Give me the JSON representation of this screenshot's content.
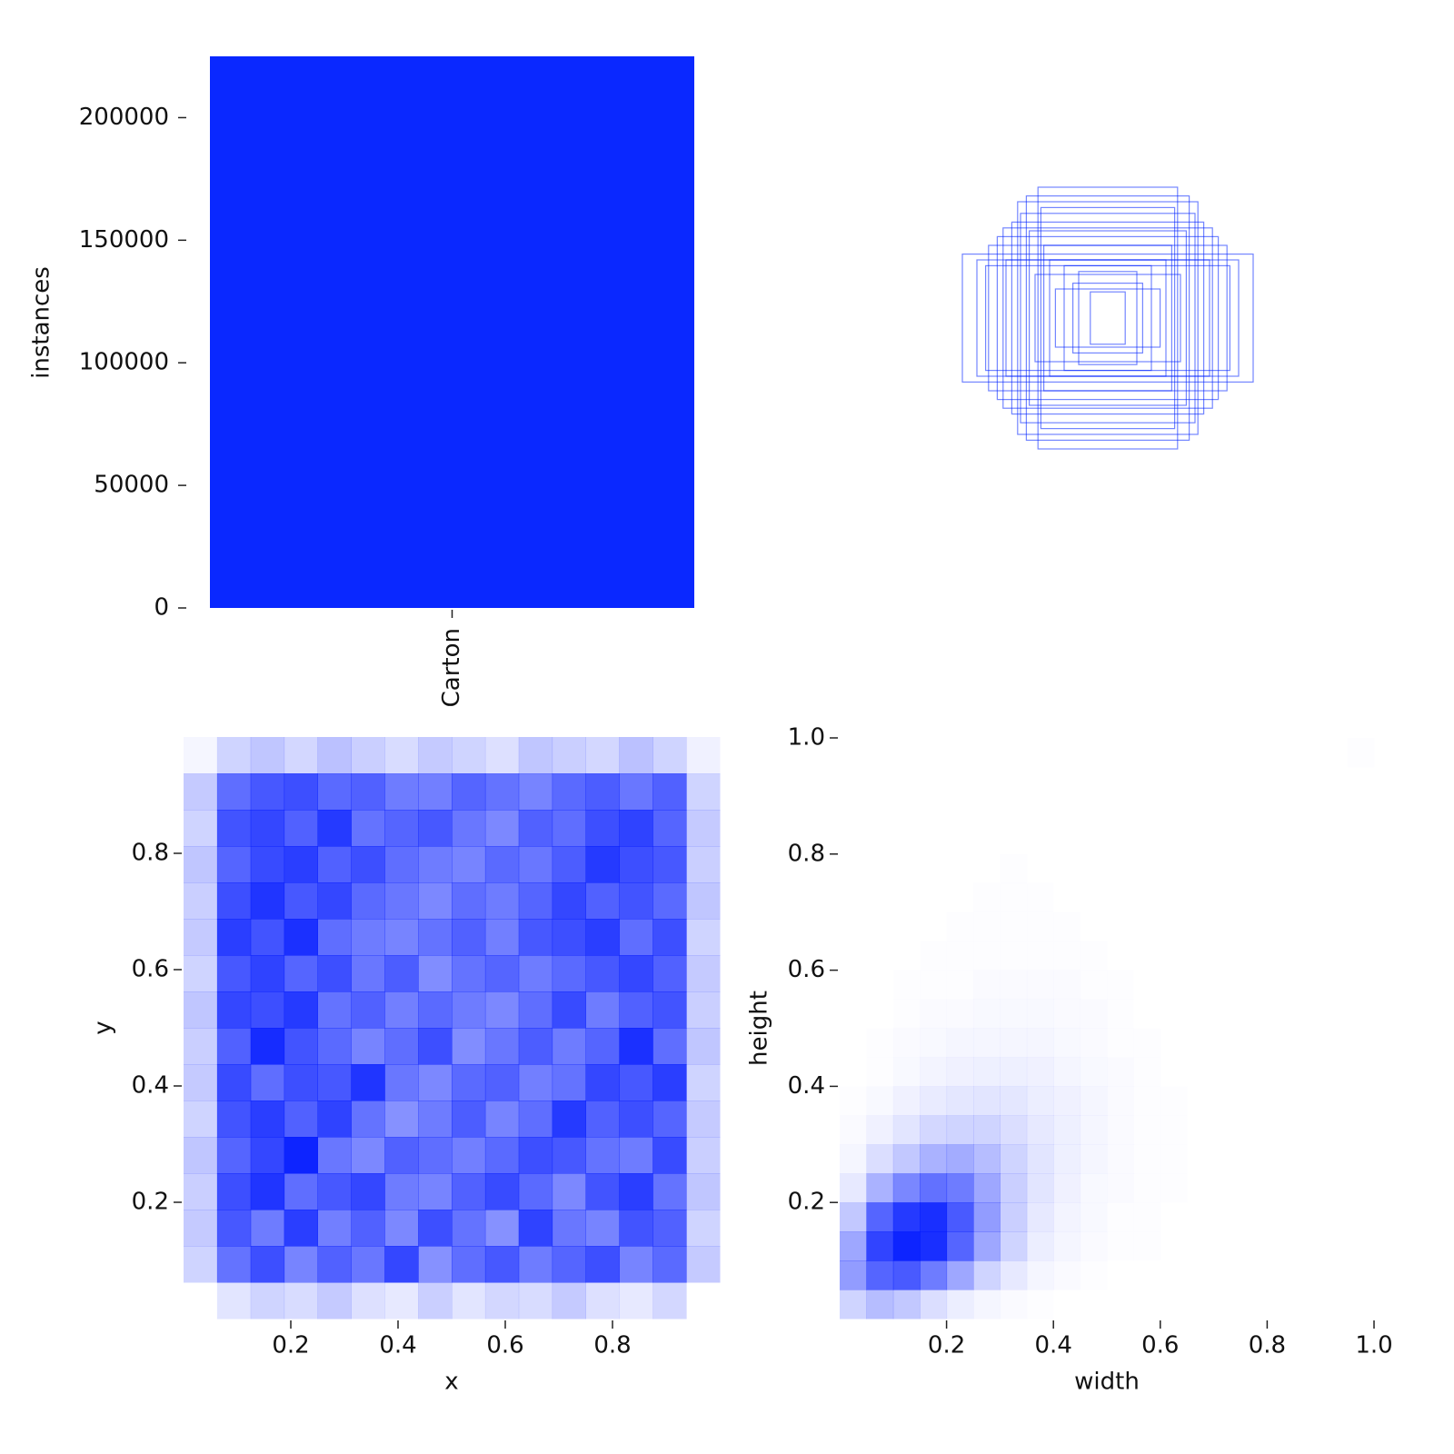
{
  "chart_data": [
    {
      "type": "bar",
      "ylabel": "instances",
      "categories": [
        "Carton"
      ],
      "values": [
        225000
      ],
      "color": "#0a28ff",
      "ylim": [
        0,
        225000
      ],
      "yticks": [
        0,
        50000,
        100000,
        150000,
        200000
      ]
    },
    {
      "type": "boxes",
      "color": "#0022ff",
      "widths": [
        0.5,
        0.45,
        0.42,
        0.24,
        0.28,
        0.31,
        0.36,
        0.41,
        0.38,
        0.3,
        0.27,
        0.22,
        0.2,
        0.15,
        0.12,
        0.25,
        0.33,
        0.1,
        0.18,
        0.35,
        0.23,
        0.06
      ],
      "heights": [
        0.22,
        0.2,
        0.18,
        0.45,
        0.42,
        0.4,
        0.31,
        0.25,
        0.28,
        0.36,
        0.3,
        0.25,
        0.2,
        0.18,
        0.12,
        0.15,
        0.33,
        0.16,
        0.1,
        0.2,
        0.38,
        0.09
      ]
    },
    {
      "type": "heatmap",
      "xlabel": "x",
      "ylabel": "y",
      "color": "#0018ff",
      "xlim": [
        0,
        1
      ],
      "ylim": [
        0,
        1
      ],
      "xticks": [
        0.2,
        0.4,
        0.6,
        0.8
      ],
      "yticks": [
        0.2,
        0.4,
        0.6,
        0.8
      ],
      "values": [
        [
          30,
          36,
          40,
          38,
          42,
          37,
          35,
          41,
          36,
          39,
          38,
          42,
          37,
          35,
          39,
          30
        ],
        [
          40,
          62,
          70,
          58,
          66,
          61,
          72,
          55,
          63,
          68,
          60,
          65,
          70,
          58,
          64,
          42
        ],
        [
          42,
          68,
          60,
          74,
          59,
          66,
          57,
          70,
          62,
          55,
          73,
          61,
          58,
          69,
          66,
          40
        ],
        [
          41,
          70,
          76,
          63,
          68,
          72,
          60,
          58,
          66,
          71,
          64,
          57,
          69,
          74,
          62,
          43
        ],
        [
          43,
          65,
          72,
          80,
          61,
          57,
          66,
          63,
          59,
          64,
          70,
          68,
          62,
          60,
          71,
          41
        ],
        [
          40,
          69,
          74,
          66,
          73,
          62,
          55,
          60,
          67,
          58,
          63,
          75,
          66,
          70,
          65,
          42
        ],
        [
          42,
          71,
          63,
          70,
          68,
          76,
          61,
          57,
          64,
          66,
          59,
          62,
          72,
          68,
          74,
          40
        ],
        [
          41,
          66,
          78,
          69,
          64,
          58,
          63,
          70,
          56,
          61,
          67,
          60,
          65,
          77,
          63,
          43
        ],
        [
          43,
          72,
          70,
          75,
          62,
          66,
          59,
          64,
          60,
          57,
          63,
          71,
          60,
          66,
          69,
          41
        ],
        [
          40,
          68,
          73,
          65,
          70,
          61,
          67,
          56,
          62,
          65,
          60,
          64,
          68,
          72,
          66,
          42
        ],
        [
          42,
          74,
          69,
          77,
          63,
          60,
          58,
          62,
          66,
          59,
          68,
          70,
          74,
          63,
          70,
          40
        ],
        [
          41,
          70,
          76,
          68,
          72,
          64,
          61,
          57,
          63,
          60,
          65,
          72,
          66,
          69,
          64,
          43
        ],
        [
          43,
          65,
          71,
          74,
          66,
          70,
          63,
          60,
          58,
          64,
          61,
          67,
          75,
          70,
          68,
          41
        ],
        [
          40,
          69,
          72,
          66,
          75,
          62,
          65,
          68,
          61,
          57,
          66,
          63,
          70,
          73,
          65,
          42
        ],
        [
          42,
          63,
          68,
          70,
          64,
          66,
          60,
          59,
          65,
          62,
          58,
          64,
          67,
          61,
          66,
          40
        ],
        [
          32,
          40,
          43,
          39,
          44,
          41,
          38,
          42,
          40,
          37,
          43,
          41,
          39,
          44,
          40,
          33
        ]
      ]
    },
    {
      "type": "heatmap",
      "xlabel": "width",
      "ylabel": "height",
      "color": "#0018ff",
      "xlim": [
        0,
        1
      ],
      "ylim": [
        0,
        1
      ],
      "xticks": [
        0.2,
        0.4,
        0.6,
        0.8,
        {
          "value": 1,
          "label": "1.0"
        }
      ],
      "yticks": [
        0.2,
        0.4,
        0.6,
        0.8,
        {
          "value": 1,
          "label": "1.0"
        }
      ],
      "values": [
        [
          20,
          30,
          25,
          15,
          8,
          4,
          2,
          1,
          0,
          0,
          0,
          0,
          0,
          0,
          0,
          0,
          0,
          0,
          0,
          0
        ],
        [
          45,
          70,
          75,
          60,
          40,
          20,
          10,
          4,
          2,
          1,
          0,
          0,
          0,
          0,
          0,
          0,
          0,
          0,
          0,
          0
        ],
        [
          40,
          85,
          100,
          95,
          70,
          40,
          20,
          8,
          4,
          2,
          1,
          1,
          0,
          0,
          0,
          0,
          0,
          0,
          0,
          0
        ],
        [
          25,
          70,
          90,
          95,
          75,
          45,
          22,
          10,
          5,
          3,
          1,
          1,
          0,
          0,
          0,
          0,
          0,
          0,
          0,
          0
        ],
        [
          10,
          35,
          55,
          65,
          60,
          40,
          22,
          12,
          6,
          3,
          2,
          1,
          1,
          0,
          0,
          0,
          0,
          0,
          0,
          0
        ],
        [
          4,
          15,
          25,
          35,
          38,
          30,
          20,
          12,
          7,
          4,
          2,
          1,
          1,
          0,
          0,
          0,
          0,
          0,
          0,
          0
        ],
        [
          2,
          6,
          12,
          18,
          20,
          20,
          15,
          10,
          7,
          4,
          2,
          1,
          1,
          0,
          0,
          0,
          0,
          0,
          0,
          0
        ],
        [
          1,
          3,
          6,
          9,
          11,
          12,
          11,
          8,
          6,
          4,
          2,
          1,
          1,
          0,
          0,
          0,
          0,
          0,
          0,
          0
        ],
        [
          0,
          1,
          3,
          5,
          6,
          7,
          7,
          6,
          4,
          3,
          2,
          1,
          0,
          0,
          0,
          0,
          0,
          0,
          0,
          0
        ],
        [
          0,
          1,
          2,
          3,
          4,
          4,
          4,
          4,
          3,
          2,
          1,
          1,
          0,
          0,
          0,
          0,
          0,
          0,
          0,
          0
        ],
        [
          0,
          0,
          1,
          2,
          2,
          3,
          3,
          3,
          2,
          2,
          1,
          0,
          0,
          0,
          0,
          0,
          0,
          0,
          0,
          0
        ],
        [
          0,
          0,
          1,
          1,
          1,
          2,
          2,
          2,
          2,
          1,
          1,
          0,
          0,
          0,
          0,
          0,
          0,
          0,
          0,
          0
        ],
        [
          0,
          0,
          0,
          1,
          1,
          1,
          1,
          1,
          1,
          1,
          0,
          0,
          0,
          0,
          0,
          0,
          0,
          0,
          0,
          0
        ],
        [
          0,
          0,
          0,
          0,
          1,
          1,
          1,
          1,
          1,
          0,
          0,
          0,
          0,
          0,
          0,
          0,
          0,
          0,
          0,
          0
        ],
        [
          0,
          0,
          0,
          0,
          0,
          1,
          1,
          1,
          0,
          0,
          0,
          0,
          0,
          0,
          0,
          0,
          0,
          0,
          0,
          0
        ],
        [
          0,
          0,
          0,
          0,
          0,
          0,
          1,
          0,
          0,
          0,
          0,
          0,
          0,
          0,
          0,
          0,
          0,
          0,
          0,
          0
        ],
        [
          0,
          0,
          0,
          0,
          0,
          0,
          0,
          0,
          0,
          0,
          0,
          0,
          0,
          0,
          0,
          0,
          0,
          0,
          0,
          0
        ],
        [
          0,
          0,
          0,
          0,
          0,
          0,
          0,
          0,
          0,
          0,
          0,
          0,
          0,
          0,
          0,
          0,
          0,
          0,
          0,
          0
        ],
        [
          0,
          0,
          0,
          0,
          0,
          0,
          0,
          0,
          0,
          0,
          0,
          0,
          0,
          0,
          0,
          0,
          0,
          0,
          0,
          0
        ],
        [
          0,
          0,
          0,
          0,
          0,
          0,
          0,
          0,
          0,
          0,
          0,
          0,
          0,
          0,
          0,
          0,
          0,
          0,
          0,
          1
        ]
      ]
    }
  ]
}
